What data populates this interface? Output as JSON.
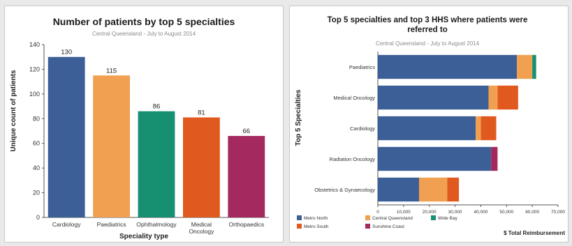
{
  "chart_data": [
    {
      "type": "bar",
      "title": "Number of patients by top 5 specialties",
      "subtitle": "Central Queensland - July to August 2014",
      "xlabel": "Speciality type",
      "ylabel": "Unique count of patients",
      "categories": [
        "Cardiology",
        "Paediatrics",
        "Ophthalmology",
        "Medical Oncology",
        "Orthopaedics"
      ],
      "values": [
        130,
        115,
        86,
        81,
        66
      ],
      "value_labels": [
        "130",
        "115",
        "86",
        "81",
        "66"
      ],
      "colors": [
        "#3b5f96",
        "#f0a050",
        "#169070",
        "#e05a20",
        "#a3295e"
      ],
      "ylim": [
        0,
        140
      ],
      "yticks": [
        0,
        20,
        40,
        60,
        80,
        100,
        120,
        140
      ],
      "grid": false,
      "legend": "none"
    },
    {
      "type": "bar",
      "orientation": "horizontal",
      "stacked": true,
      "title": "Top 5 specialties and top 3 HHS where patients were referred to",
      "subtitle": "Central Queensland - July to August 2014",
      "ylabel": "Top 5 Specialties",
      "xlabel": "$ Total Reimbursement",
      "categories": [
        "Paediatrics",
        "Medical Oncology",
        "Cardiology",
        "Radiation Oncology",
        "Obstetrics & Gynaecology"
      ],
      "xlim": [
        0,
        70000
      ],
      "xticks": [
        "0",
        "10,000",
        "20,000",
        "30,000",
        "40,000",
        "50,000",
        "60,000",
        "70,000"
      ],
      "xtick_values": [
        0,
        10000,
        20000,
        30000,
        40000,
        50000,
        60000,
        70000
      ],
      "series": [
        {
          "name": "Metro North",
          "color": "#3b5f96",
          "values": [
            54000,
            43000,
            38000,
            44000,
            16000
          ]
        },
        {
          "name": "Central Queensland",
          "color": "#f0a050",
          "values": [
            6000,
            3500,
            2000,
            0,
            11000
          ]
        },
        {
          "name": "Wide Bay",
          "color": "#169070",
          "values": [
            1500,
            0,
            0,
            0,
            0
          ]
        },
        {
          "name": "Metro South",
          "color": "#e05a20",
          "values": [
            0,
            8000,
            6000,
            0,
            4500
          ]
        },
        {
          "name": "Sunshine Coast",
          "color": "#a3295e",
          "values": [
            0,
            0,
            0,
            2500,
            0
          ]
        }
      ],
      "legend_order": [
        "Metro North",
        "Central Queensland",
        "Wide Bay",
        "Metro South",
        "Sunshine Coast"
      ],
      "grid": false,
      "legend": "bottom-left"
    }
  ]
}
